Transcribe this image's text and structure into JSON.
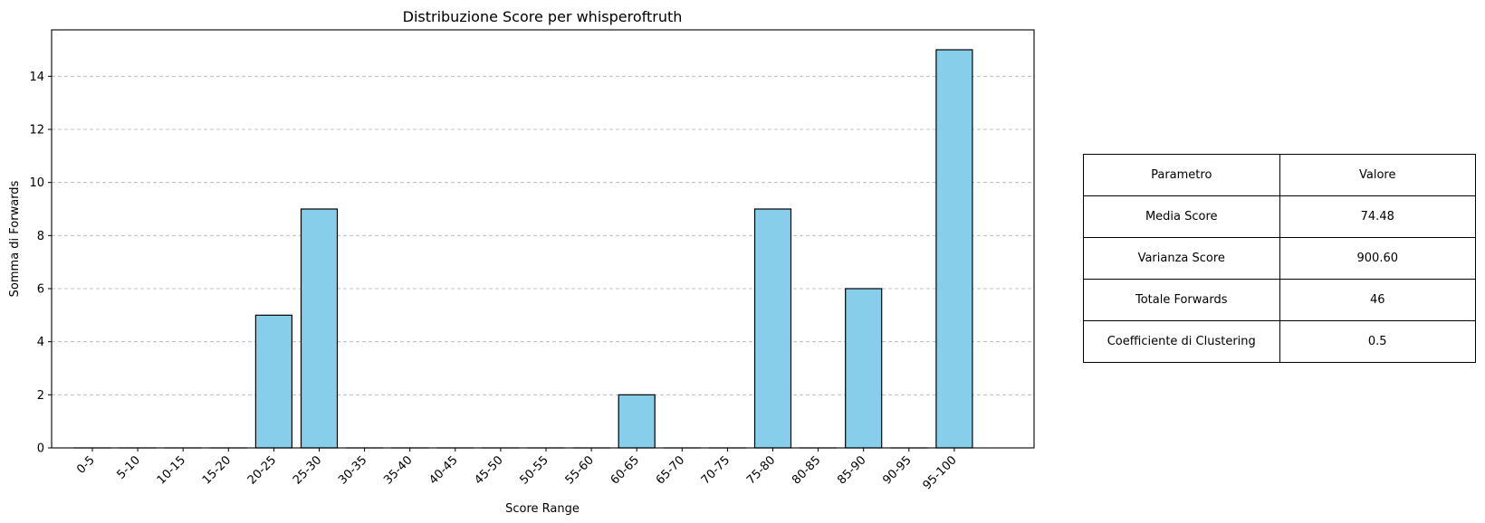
{
  "chart_data": {
    "type": "bar",
    "title": "Distribuzione Score per whisperoftruth",
    "xlabel": "Score Range",
    "ylabel": "Somma di Forwards",
    "categories": [
      "0-5",
      "5-10",
      "10-15",
      "15-20",
      "20-25",
      "25-30",
      "30-35",
      "35-40",
      "40-45",
      "45-50",
      "50-55",
      "55-60",
      "60-65",
      "65-70",
      "70-75",
      "75-80",
      "80-85",
      "85-90",
      "90-95",
      "95-100"
    ],
    "values": [
      0,
      0,
      0,
      0,
      5,
      9,
      0,
      0,
      0,
      0,
      0,
      0,
      2,
      0,
      0,
      9,
      0,
      6,
      0,
      15
    ],
    "ylim": [
      0,
      15.75
    ],
    "yticks": [
      0,
      2,
      4,
      6,
      8,
      10,
      12,
      14
    ],
    "grid": "y-dashed",
    "bar_color": "#87ceeb",
    "edge_color": "#000000",
    "grid_color": "#b0b0b0"
  },
  "table": {
    "header": [
      "Parametro",
      "Valore"
    ],
    "rows": [
      [
        "Media Score",
        "74.48"
      ],
      [
        "Varianza Score",
        "900.60"
      ],
      [
        "Totale Forwards",
        "46"
      ],
      [
        "Coefficiente di Clustering",
        "0.5"
      ]
    ]
  }
}
